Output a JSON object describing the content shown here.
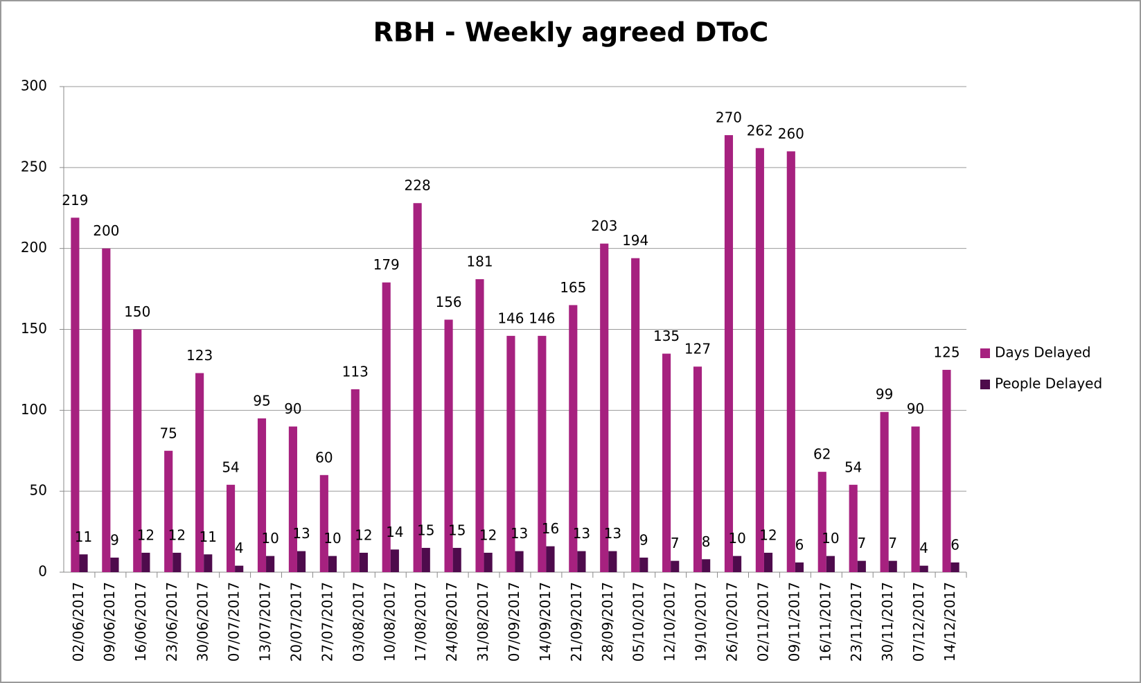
{
  "chart_data": {
    "type": "bar",
    "title": "RBH - Weekly agreed DToC",
    "categories": [
      "02/06/2017",
      "09/06/2017",
      "16/06/2017",
      "23/06/2017",
      "30/06/2017",
      "07/07/2017",
      "13/07/2017",
      "20/07/2017",
      "27/07/2017",
      "03/08/2017",
      "10/08/2017",
      "17/08/2017",
      "24/08/2017",
      "31/08/2017",
      "07/09/2017",
      "14/09/2017",
      "21/09/2017",
      "28/09/2017",
      "05/10/2017",
      "12/10/2017",
      "19/10/2017",
      "26/10/2017",
      "02/11/2017",
      "09/11/2017",
      "16/11/2017",
      "23/11/2017",
      "30/11/2017",
      "07/12/2017",
      "14/12/2017"
    ],
    "series": [
      {
        "name": "Days Delayed",
        "color": "#a6217f",
        "values": [
          219,
          200,
          150,
          75,
          123,
          54,
          95,
          90,
          60,
          113,
          179,
          228,
          156,
          181,
          146,
          146,
          165,
          203,
          194,
          135,
          127,
          270,
          262,
          260,
          62,
          54,
          99,
          90,
          125
        ]
      },
      {
        "name": "People Delayed",
        "color": "#4e0b4c",
        "values": [
          11,
          9,
          12,
          12,
          11,
          4,
          10,
          13,
          10,
          12,
          14,
          15,
          15,
          12,
          13,
          16,
          13,
          13,
          9,
          7,
          8,
          10,
          12,
          6,
          10,
          7,
          7,
          4,
          6
        ]
      }
    ],
    "ylim": [
      0,
      300
    ],
    "yticks": [
      0,
      50,
      100,
      150,
      200,
      250,
      300
    ],
    "grid": true,
    "legend": "right"
  }
}
